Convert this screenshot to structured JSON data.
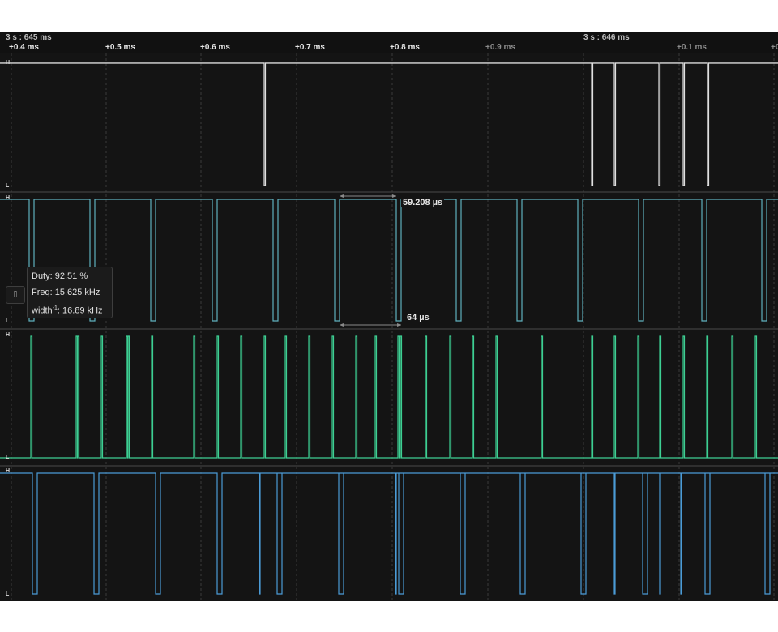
{
  "timeline": {
    "major_labels": [
      {
        "text": "3 s : 645 ms",
        "dim": false
      },
      {
        "text": "3 s : 646 ms",
        "dim": false
      }
    ],
    "ticks": [
      {
        "text": "+0.4 ms",
        "dim": false
      },
      {
        "text": "+0.5 ms",
        "dim": false
      },
      {
        "text": "+0.6 ms",
        "dim": false
      },
      {
        "text": "+0.7 ms",
        "dim": false
      },
      {
        "text": "+0.8 ms",
        "dim": false
      },
      {
        "text": "+0.9 ms",
        "dim": true
      },
      {
        "text": "+0.1 ms",
        "dim": true
      },
      {
        "text": "+0",
        "dim": true
      }
    ]
  },
  "channels": [
    {
      "color": "#e0e0e0",
      "high_label": "H",
      "low_label": "L"
    },
    {
      "color": "#5fb0bd",
      "high_label": "H",
      "low_label": "L"
    },
    {
      "color": "#3dcf93",
      "high_label": "H",
      "low_label": "L"
    },
    {
      "color": "#4b9bd6",
      "high_label": "H",
      "low_label": "L"
    }
  ],
  "measurements": {
    "width_label": "59.208 µs",
    "period_label": "64 µs"
  },
  "tooltip": {
    "icon": "pulse-measure-icon",
    "duty": "Duty: 92.51 %",
    "freq": "Freq: 15.625 kHz",
    "width_prefix": "width",
    "width_exp": "-1",
    "width_value": ": 16.89 kHz"
  }
}
